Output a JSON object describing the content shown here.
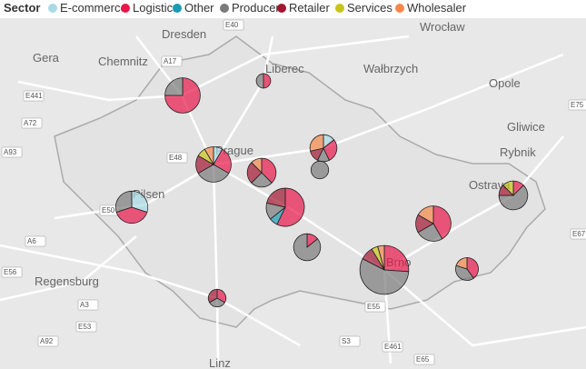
{
  "legend": {
    "title": "Sector",
    "items": [
      {
        "name": "E-commerce",
        "color": "#a8dbe6"
      },
      {
        "name": "Logistics",
        "color": "#e8174a"
      },
      {
        "name": "Other",
        "color": "#1a9bb5"
      },
      {
        "name": "Producer",
        "color": "#7a7a7a"
      },
      {
        "name": "Retailer",
        "color": "#a3142f"
      },
      {
        "name": "Services",
        "color": "#c9c41a"
      },
      {
        "name": "Wholesaler",
        "color": "#f7884a"
      }
    ]
  },
  "cities": [
    "Dresden",
    "Chemnitz",
    "Gera",
    "Liberec",
    "Wrocław",
    "Wałbrzych",
    "Opole",
    "Gliwice",
    "Rybnik",
    "Ostrava",
    "Prague",
    "Pilsen",
    "Brno",
    "Regensburg",
    "Linz"
  ],
  "roads": [
    "E40",
    "A17",
    "E441",
    "A72",
    "A93",
    "E48",
    "E50",
    "A6",
    "E56",
    "A3",
    "E53",
    "A92",
    "E55",
    "S3",
    "E461",
    "E65",
    "E75",
    "E67"
  ],
  "pies": [
    {
      "values": [
        0,
        9,
        0,
        3,
        0,
        0,
        0
      ]
    },
    {
      "values": [
        0,
        1,
        0,
        1,
        0,
        0,
        0
      ]
    },
    {
      "values": [
        1,
        3,
        0,
        4,
        2,
        1,
        1
      ]
    },
    {
      "values": [
        0,
        3,
        0,
        2,
        2,
        0,
        1
      ]
    },
    {
      "values": [
        1,
        2,
        0,
        1,
        1,
        0,
        2
      ]
    },
    {
      "values": [
        0,
        0,
        0,
        3,
        0,
        0,
        0
      ]
    },
    {
      "values": [
        3,
        4,
        0,
        3,
        0,
        0,
        0
      ]
    },
    {
      "values": [
        0,
        8,
        1,
        2,
        3,
        0,
        0
      ]
    },
    {
      "values": [
        0,
        1,
        0,
        6,
        0,
        0,
        0
      ]
    },
    {
      "values": [
        0,
        5,
        0,
        3,
        2,
        0,
        2
      ]
    },
    {
      "values": [
        0,
        1,
        0,
        5,
        1,
        1,
        0
      ]
    },
    {
      "values": [
        0,
        6,
        0,
        13,
        2,
        1,
        1
      ]
    },
    {
      "values": [
        0,
        2,
        0,
        2,
        0,
        0,
        1
      ]
    },
    {
      "values": [
        0,
        1,
        0,
        1,
        1,
        0,
        0
      ]
    }
  ]
}
